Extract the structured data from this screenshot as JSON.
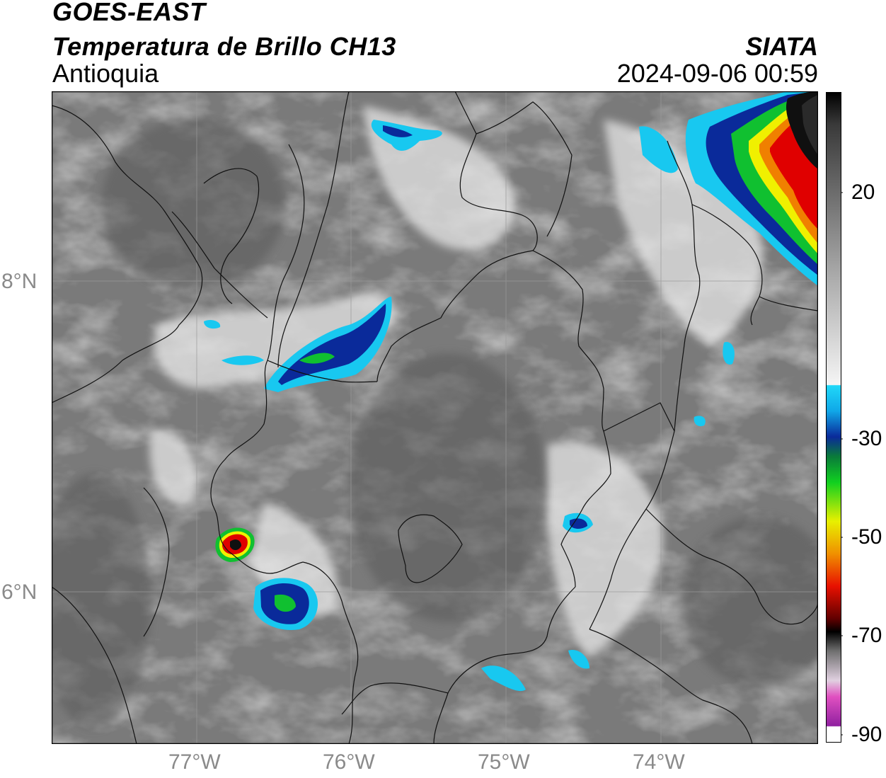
{
  "header": {
    "line1": "GOES-EAST",
    "line2": "Temperatura de Brillo CH13",
    "region": "Antioquia",
    "organization": "SIATA",
    "timestamp": "2024-09-06 00:59"
  },
  "map": {
    "lat_labels": [
      "8°N",
      "6°N"
    ],
    "lon_labels": [
      "77°W",
      "76°W",
      "75°W",
      "74°W"
    ]
  },
  "colorbar": {
    "tick_labels": [
      "20",
      "-30",
      "-50",
      "-70",
      "-90"
    ],
    "colors": {
      "warm_gray": "#6f6f6f",
      "light": "#f2f2f2",
      "cyan": "#18c8f0",
      "blue": "#0a2a9a",
      "green": "#10c030",
      "yellow": "#f0f000",
      "orange": "#f08000",
      "red": "#e00000",
      "black": "#101010",
      "magenta": "#b020b0"
    }
  }
}
